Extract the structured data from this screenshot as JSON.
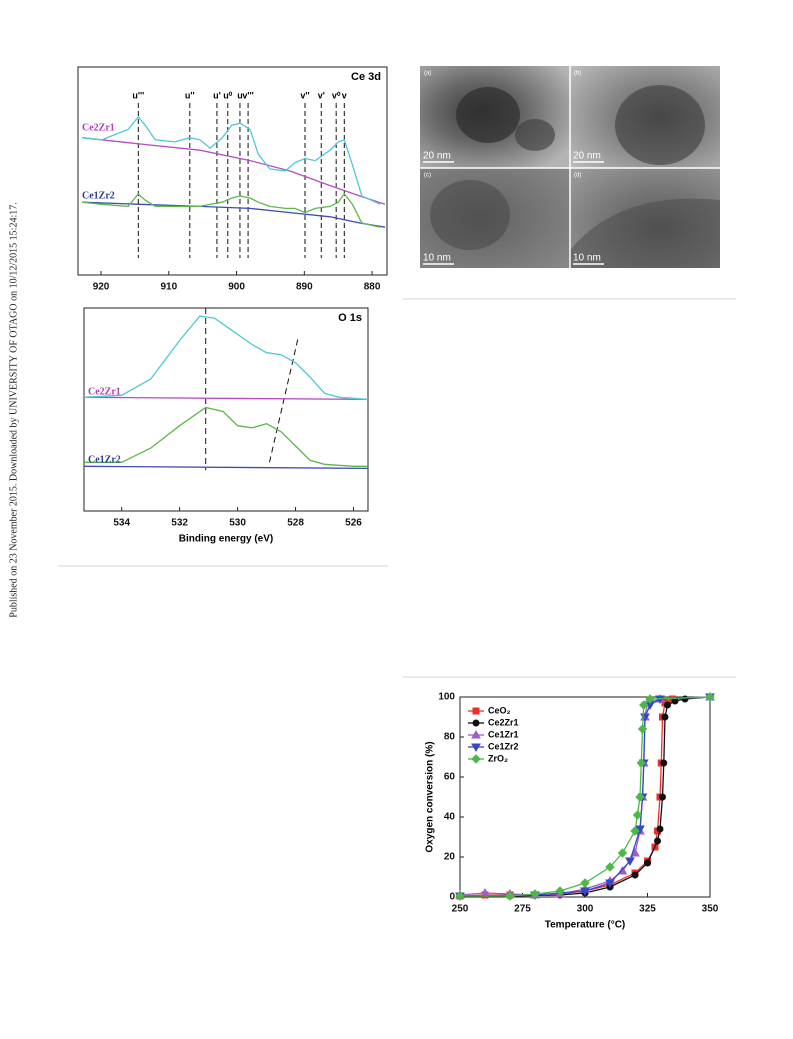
{
  "sidebar": "Published on 23 November 2015. Downloaded by UNIVERSITY OF OTAGO on 10/12/2015 15:24:17.",
  "figure_images": {
    "panels": [
      {
        "label": "(a)",
        "scale": "20 nm"
      },
      {
        "label": "(b)",
        "scale": "20 nm"
      },
      {
        "label": "(c)",
        "scale": "10 nm"
      },
      {
        "label": "(d)",
        "scale": "10 nm"
      }
    ]
  },
  "chart_data": [
    {
      "type": "line",
      "title": "Ce 3d",
      "xlim": [
        923.4,
        877.8
      ],
      "ylim": [
        0,
        100
      ],
      "xticks": [
        920,
        910,
        900,
        890,
        880
      ],
      "peaks": [
        {
          "label": "u'''",
          "x": 914.5
        },
        {
          "label": "u''",
          "x": 906.9
        },
        {
          "label": "u'",
          "x": 902.9
        },
        {
          "label": "u⁰",
          "x": 901.3
        },
        {
          "label": "u",
          "x": 899.5
        },
        {
          "label": "v'''",
          "x": 898.3
        },
        {
          "label": "v''",
          "x": 889.9
        },
        {
          "label": "v'",
          "x": 887.5
        },
        {
          "label": "v⁰",
          "x": 885.3
        },
        {
          "label": "v",
          "x": 884.1
        }
      ],
      "series": [
        {
          "name": "Ce2Zr1",
          "color": "#4cc8d8",
          "label_color": "#b03cb8",
          "x": [
            922.8,
            919.9,
            916.0,
            914.5,
            913.5,
            912.0,
            909.1,
            906.9,
            905.4,
            903.9,
            902.1,
            900.7,
            899.5,
            898.0,
            896.8,
            895.1,
            892.8,
            891.4,
            889.9,
            888.4,
            886.2,
            885.0,
            884.1,
            882.9,
            881.5,
            878.8
          ],
          "values": [
            66,
            65,
            70,
            76,
            72,
            65,
            64,
            66,
            65,
            61,
            66,
            72,
            73,
            70,
            58,
            51,
            50,
            54,
            56,
            55,
            60,
            64,
            65,
            53,
            38,
            34
          ],
          "baseline_color": "#b84cc4",
          "baseline_x": [
            922.8,
            914.2,
            905.4,
            898.0,
            892.1,
            886.2,
            881.8,
            878.1
          ],
          "baseline": [
            66,
            63,
            60,
            55,
            50,
            43,
            38,
            34
          ]
        },
        {
          "name": "Ce1Zr2",
          "color": "#5cb848",
          "label_color": "#2c3c9c",
          "x": [
            922.8,
            919.9,
            916.0,
            914.5,
            913.5,
            912.0,
            909.1,
            906.9,
            905.4,
            903.9,
            902.1,
            900.7,
            899.5,
            898.0,
            896.8,
            895.1,
            892.8,
            891.4,
            889.9,
            888.4,
            886.2,
            885.0,
            884.1,
            882.9,
            881.5,
            878.8
          ],
          "values": [
            35,
            34,
            33,
            39,
            36,
            33,
            33,
            33,
            33,
            34,
            35,
            37,
            38,
            37,
            35,
            33,
            32,
            32,
            30,
            32,
            33,
            35,
            39,
            34,
            25,
            23
          ],
          "baseline_color": "#3c4cb0",
          "baseline_x": [
            922.8,
            914.2,
            905.4,
            898.0,
            892.1,
            886.2,
            881.8,
            878.1
          ],
          "baseline": [
            35,
            34,
            33,
            32,
            30,
            28,
            25,
            23
          ]
        }
      ]
    },
    {
      "type": "line",
      "title": "O 1s",
      "xlabel": "Binding energy (eV)",
      "xlim": [
        535.3,
        525.5
      ],
      "ylim": [
        0,
        100
      ],
      "xticks": [
        534,
        532,
        530,
        528,
        526
      ],
      "guides": [
        {
          "x": [
            531.1,
            531.1
          ],
          "y": [
            100,
            20
          ]
        },
        {
          "x": [
            528.9,
            527.9
          ],
          "y": [
            24,
            86
          ]
        }
      ],
      "series": [
        {
          "name": "Ce2Zr1",
          "color": "#4cc8d8",
          "label_color": "#b03cb8",
          "x": [
            535.3,
            534,
            533,
            532,
            531.3,
            530.8,
            530.3,
            529.5,
            529,
            528.5,
            528,
            527.5,
            527,
            526.5,
            525.5
          ],
          "values": [
            56,
            57,
            65,
            84,
            96,
            95,
            90,
            82,
            78,
            77,
            73,
            66,
            58,
            56,
            55
          ],
          "baseline_color": "#b84cc4",
          "baseline_x": [
            535.3,
            525.5
          ],
          "baseline": [
            56,
            55
          ]
        },
        {
          "name": "Ce1Zr2",
          "color": "#5cb848",
          "label_color": "#2c3c9c",
          "x": [
            535.3,
            534,
            533,
            532,
            531.1,
            530.5,
            530,
            529.5,
            529,
            528.5,
            528,
            527.5,
            527,
            526,
            525.5
          ],
          "values": [
            24,
            24,
            31,
            42,
            51,
            49,
            42,
            41,
            43,
            39,
            32,
            25,
            23,
            22,
            22
          ],
          "baseline_color": "#3c4cb0",
          "baseline_x": [
            535.3,
            525.5
          ],
          "baseline": [
            22,
            21
          ]
        }
      ]
    },
    {
      "type": "line",
      "xlabel": "Temperature (°C)",
      "ylabel": "Oxygen conversion (%)",
      "xlim": [
        250,
        350
      ],
      "ylim": [
        0,
        100
      ],
      "xticks": [
        250,
        275,
        300,
        325,
        350
      ],
      "yticks": [
        0,
        20,
        40,
        60,
        80,
        100
      ],
      "legend": "upper left",
      "series": [
        {
          "name": "CeO₂",
          "color": "#e8312f",
          "marker": "square",
          "x": [
            250,
            260,
            270,
            280,
            290,
            300,
            310,
            320,
            325,
            328,
            329,
            330,
            330.5,
            331,
            332,
            335,
            350
          ],
          "values": [
            0.5,
            1,
            1,
            1,
            1.5,
            3,
            6,
            12,
            18,
            25,
            33,
            50,
            67,
            90,
            97,
            99,
            100
          ]
        },
        {
          "name": "Ce2Zr1",
          "color": "#111111",
          "marker": "circle",
          "x": [
            250,
            270,
            290,
            300,
            310,
            320,
            325,
            329,
            330,
            331,
            331.5,
            332,
            333,
            336,
            340,
            350
          ],
          "values": [
            0.5,
            0.5,
            1,
            2,
            5,
            11,
            17,
            28,
            34,
            50,
            67,
            90,
            96,
            98,
            99,
            100
          ]
        },
        {
          "name": "Ce1Zr1",
          "color": "#a05cc8",
          "marker": "triangle-up",
          "x": [
            250,
            260,
            270,
            280,
            290,
            300,
            310,
            315,
            320,
            322,
            323,
            323.5,
            324,
            325,
            330,
            350
          ],
          "values": [
            1,
            2,
            1.5,
            1,
            1.5,
            4,
            8,
            13,
            22,
            33,
            50,
            67,
            90,
            97,
            99,
            100
          ]
        },
        {
          "name": "Ce1Zr2",
          "color": "#3448c8",
          "marker": "triangle-down",
          "x": [
            250,
            280,
            300,
            310,
            318,
            322,
            323,
            323.5,
            324,
            326,
            330,
            350
          ],
          "values": [
            0.5,
            1,
            3,
            7,
            18,
            34,
            50,
            67,
            90,
            96,
            99,
            100
          ]
        },
        {
          "name": "ZrO₂",
          "color": "#4cb848",
          "marker": "diamond",
          "x": [
            250,
            270,
            280,
            290,
            300,
            310,
            315,
            320,
            321,
            322,
            322.5,
            323,
            323.5,
            326,
            350
          ],
          "values": [
            0.5,
            0.5,
            1.5,
            3,
            7,
            15,
            22,
            33,
            41,
            50,
            67,
            84,
            96,
            99,
            100
          ]
        }
      ]
    }
  ]
}
